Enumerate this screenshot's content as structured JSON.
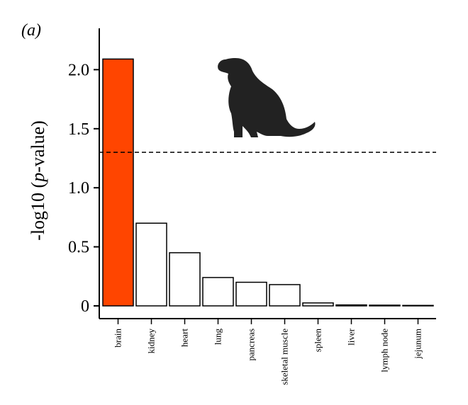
{
  "chart_data": {
    "type": "bar",
    "panel_label": "(a)",
    "title": "",
    "xlabel": "",
    "ylabel": "-log10 (p-value)",
    "ylim": [
      0,
      2.35
    ],
    "yticks": [
      0,
      0.5,
      1.0,
      1.5,
      2.0
    ],
    "ytick_labels": [
      "0",
      "0.5",
      "1.0",
      "1.5",
      "2.0"
    ],
    "categories": [
      "brain",
      "kidney",
      "heart",
      "lung",
      "pancreas",
      "skeletal muscle",
      "spleen",
      "liver",
      "lymph node",
      "jejunum"
    ],
    "values": [
      2.09,
      0.7,
      0.45,
      0.24,
      0.2,
      0.18,
      0.025,
      0.008,
      0.006,
      0.004
    ],
    "highlight_index": 0,
    "threshold": 1.3,
    "colors": {
      "highlight": "#ff4500",
      "bar": "#ffffff",
      "stroke": "#000000",
      "silhouette": "#222222"
    },
    "icon": "dog-silhouette-icon",
    "grid": false
  }
}
